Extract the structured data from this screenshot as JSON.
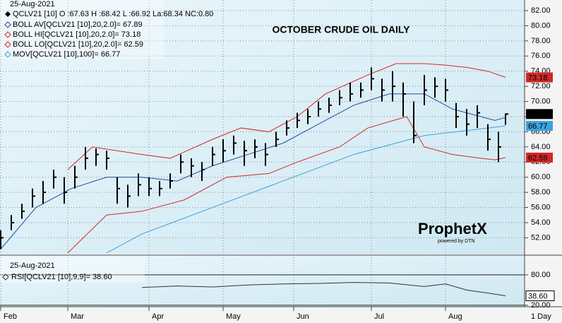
{
  "chart_data": [
    {
      "type": "ohlc",
      "date": "25-Aug-2021",
      "title": "OCTOBER CRUDE OIL DAILY",
      "interval": "1 Day",
      "name": "QCLV21 [10] O :67.63 H :68.42 L :66.92 La:68.34 NC:0.80",
      "color": "#000000",
      "x": [
        0,
        3,
        6,
        9,
        12,
        15,
        18,
        21,
        24,
        27,
        30,
        33,
        36,
        39,
        42,
        45,
        48,
        51,
        54,
        57,
        60,
        63,
        66,
        69,
        72,
        75,
        78,
        81,
        84,
        87,
        90,
        93,
        96,
        99,
        102,
        105,
        108,
        111,
        114,
        117,
        120,
        123,
        126,
        129,
        132,
        135,
        138,
        141,
        143
      ],
      "high": [
        53,
        55,
        56.5,
        58.5,
        59.5,
        61,
        60,
        61.5,
        64,
        63.8,
        63.5,
        60,
        59,
        60.5,
        60,
        59.5,
        60.5,
        63,
        62.5,
        62,
        64,
        65,
        65.5,
        64.8,
        65,
        64.5,
        66,
        67.5,
        68.5,
        69,
        70,
        70.5,
        71.5,
        72.5,
        72.5,
        74.5,
        73,
        74,
        72.5,
        70,
        73.5,
        73.2,
        73,
        69.8,
        69,
        69.5,
        67,
        66,
        68.42
      ],
      "low": [
        50.5,
        53,
        54.5,
        56,
        56.5,
        58.5,
        56.5,
        58.5,
        61,
        61.5,
        61,
        56.5,
        56,
        57.5,
        57.5,
        57.5,
        58.5,
        60.5,
        60,
        59.5,
        61.5,
        62,
        63,
        61.5,
        62.5,
        61.5,
        64,
        65.5,
        66.5,
        67,
        68,
        68.5,
        69.5,
        70,
        70.5,
        71.5,
        70,
        70,
        68,
        64.5,
        69.5,
        70.5,
        70,
        66.5,
        65.5,
        66.5,
        63.5,
        62,
        66.92
      ],
      "close": [
        52,
        54,
        55.5,
        57.5,
        58,
        60,
        58,
        60,
        62.5,
        63,
        62.5,
        58.5,
        57.5,
        59,
        58.5,
        58.5,
        59.5,
        62,
        61.5,
        61,
        63,
        63.5,
        64.5,
        63.5,
        64,
        63,
        65,
        66.5,
        67.5,
        68,
        69,
        69.5,
        70.5,
        71,
        71.5,
        73,
        71.5,
        72,
        71,
        65.5,
        71.5,
        72,
        71.5,
        68,
        67,
        68.5,
        65,
        64,
        68.34
      ],
      "series": [
        {
          "name": "BOLL AV[QCLV21 [10],20,2.0]= 67.89",
          "color": "#1f4e9c",
          "box": false,
          "x": [
            0,
            10,
            20,
            30,
            40,
            50,
            60,
            70,
            80,
            90,
            100,
            110,
            120,
            128,
            140,
            143
          ],
          "values": [
            50.5,
            56,
            58.5,
            60,
            60,
            59.5,
            61.5,
            63,
            64.5,
            67,
            69.5,
            71,
            71,
            69,
            67.5,
            67.89
          ]
        },
        {
          "name": "BOLL HI[QCLV21 [10],20,2.0]= 73.18",
          "color": "#d02828",
          "box": true,
          "x": [
            19,
            26,
            40,
            48,
            60,
            68,
            76,
            84,
            92,
            104,
            112,
            120,
            126,
            132,
            138,
            143
          ],
          "values": [
            61,
            64,
            63,
            62.5,
            65,
            66.5,
            66,
            68,
            71,
            73.5,
            75,
            75,
            74.8,
            74.5,
            74,
            73.18
          ]
        },
        {
          "name": "BOLL LO[QCLV21 [10],20,2.0]= 62.59",
          "color": "#d02828",
          "box": true,
          "x": [
            19,
            30,
            40,
            52,
            64,
            76,
            84,
            96,
            104,
            115,
            120,
            128,
            136,
            140,
            143
          ],
          "values": [
            50,
            55,
            55.5,
            57,
            60,
            60.5,
            62,
            64,
            66.5,
            68,
            64,
            63,
            62.5,
            62.3,
            62.59
          ]
        },
        {
          "name": "MOV[QCLV21 [10],100]= 66.77",
          "color": "#3aa3dc",
          "box": true,
          "x": [
            30,
            40,
            60,
            80,
            100,
            120,
            140,
            143
          ],
          "values": [
            50,
            52.5,
            56,
            59.5,
            63,
            65.5,
            66.6,
            66.77
          ]
        }
      ],
      "xlim": [
        -0.2,
        148.4
      ],
      "xticks": [
        {
          "value": 0,
          "label": "Feb"
        },
        {
          "value": 19,
          "label": "Mar"
        },
        {
          "value": 42,
          "label": "Apr"
        },
        {
          "value": 63,
          "label": "May"
        },
        {
          "value": 83,
          "label": "Jun"
        },
        {
          "value": 105,
          "label": "Jul"
        },
        {
          "value": 126,
          "label": "Aug"
        }
      ],
      "ylim": [
        49.8,
        83.4
      ],
      "yticks": [
        {
          "value": 52,
          "label": "52.00"
        },
        {
          "value": 54,
          "label": "54.00"
        },
        {
          "value": 56,
          "label": "56.00"
        },
        {
          "value": 58,
          "label": "58.00"
        },
        {
          "value": 60,
          "label": "60.00"
        },
        {
          "value": 62,
          "label": "62.00"
        },
        {
          "value": 64,
          "label": "64.00"
        },
        {
          "value": 66,
          "label": "66.00"
        },
        {
          "value": 68,
          "label": "68.00"
        },
        {
          "value": 70,
          "label": "70.00"
        },
        {
          "value": 72,
          "label": "72.00"
        },
        {
          "value": 74,
          "label": "74.00"
        },
        {
          "value": 76,
          "label": "76.00"
        },
        {
          "value": 78,
          "label": "78.00"
        },
        {
          "value": 80,
          "label": "80.00"
        },
        {
          "value": 82,
          "label": "82.00"
        }
      ],
      "grid": true,
      "watermark": "ProphetX",
      "watermark_sub": "powered by DTN"
    },
    {
      "type": "line",
      "date": "25-Aug-2021",
      "name": "RSI[QCLV21 [10],9,9]= 38.60",
      "color": "#333333",
      "x": [
        40,
        50,
        60,
        70,
        80,
        90,
        100,
        110,
        120,
        126,
        132,
        138,
        143
      ],
      "values": [
        55,
        58,
        56,
        60,
        62,
        63,
        65,
        64,
        57,
        62,
        50,
        44,
        38.6
      ],
      "value_labels": [
        null,
        null,
        null,
        null,
        null,
        null,
        null,
        null,
        null,
        null,
        null,
        null,
        "38.60"
      ],
      "xlim": [
        -0.2,
        148.4
      ],
      "ylim": [
        17,
        117.5
      ],
      "yticks": [
        {
          "value": 20,
          "label": "20.00"
        },
        {
          "value": 80,
          "label": "80.00"
        }
      ]
    }
  ]
}
